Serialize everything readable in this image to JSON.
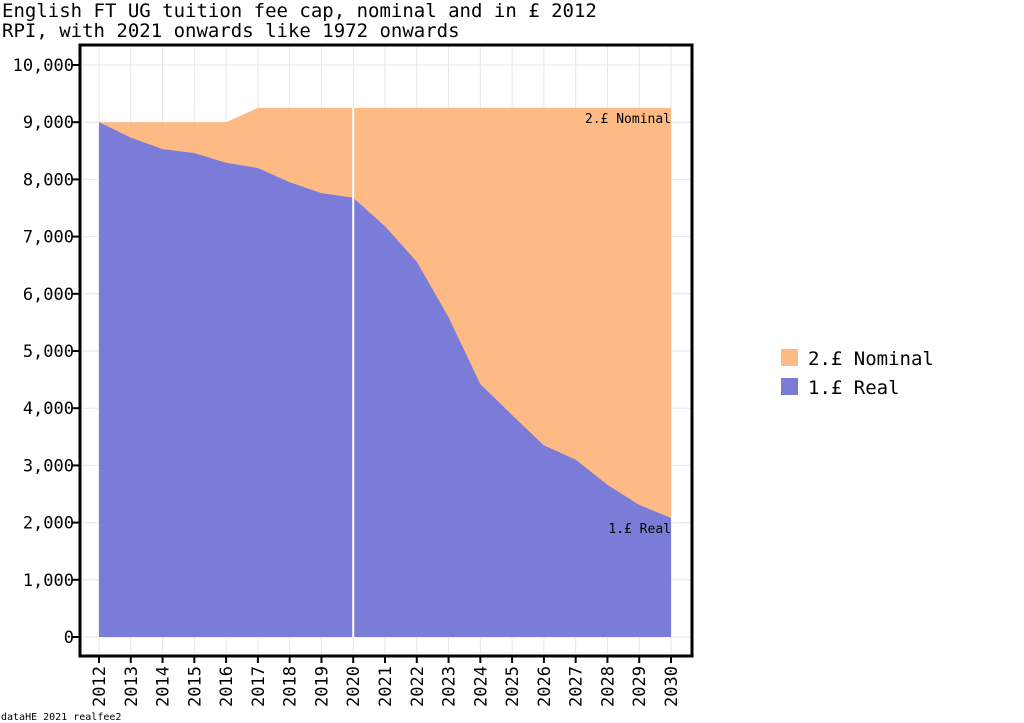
{
  "chart_data": {
    "type": "area",
    "title_lines": [
      "English FT UG tuition fee cap, nominal and in £ 2012",
      "RPI, with 2021 onwards like 1972 onwards"
    ],
    "xlabel": "",
    "ylabel": "",
    "x": [
      2012,
      2013,
      2014,
      2015,
      2016,
      2017,
      2018,
      2019,
      2020,
      2021,
      2022,
      2023,
      2024,
      2025,
      2026,
      2027,
      2028,
      2029,
      2030
    ],
    "ylim": [
      0,
      10000
    ],
    "yticks": [
      0,
      1000,
      2000,
      3000,
      4000,
      5000,
      6000,
      7000,
      8000,
      9000,
      10000
    ],
    "ytick_labels": [
      "0",
      "1,000",
      "2,000",
      "3,000",
      "4,000",
      "5,000",
      "6,000",
      "7,000",
      "8,000",
      "9,000",
      "10,000"
    ],
    "grid": true,
    "vline_x": 2020,
    "legend_position": "right",
    "series": [
      {
        "name": "2.£ Nominal",
        "color": "#fdba84",
        "values": [
          9000,
          9000,
          9000,
          9000,
          9000,
          9250,
          9250,
          9250,
          9250,
          9250,
          9250,
          9250,
          9250,
          9250,
          9250,
          9250,
          9250,
          9250,
          9250
        ]
      },
      {
        "name": "1.£ Real",
        "color": "#7b7cd8",
        "values": [
          9000,
          8730,
          8530,
          8460,
          8290,
          8200,
          7950,
          7760,
          7680,
          7180,
          6560,
          5590,
          4420,
          3880,
          3350,
          3100,
          2660,
          2310,
          2080
        ]
      }
    ],
    "annotations": [
      {
        "text": "2.£ Nominal",
        "series": 0
      },
      {
        "text": "1.£ Real",
        "series": 1
      }
    ],
    "caption": "dataHE 2021 realfee2"
  }
}
